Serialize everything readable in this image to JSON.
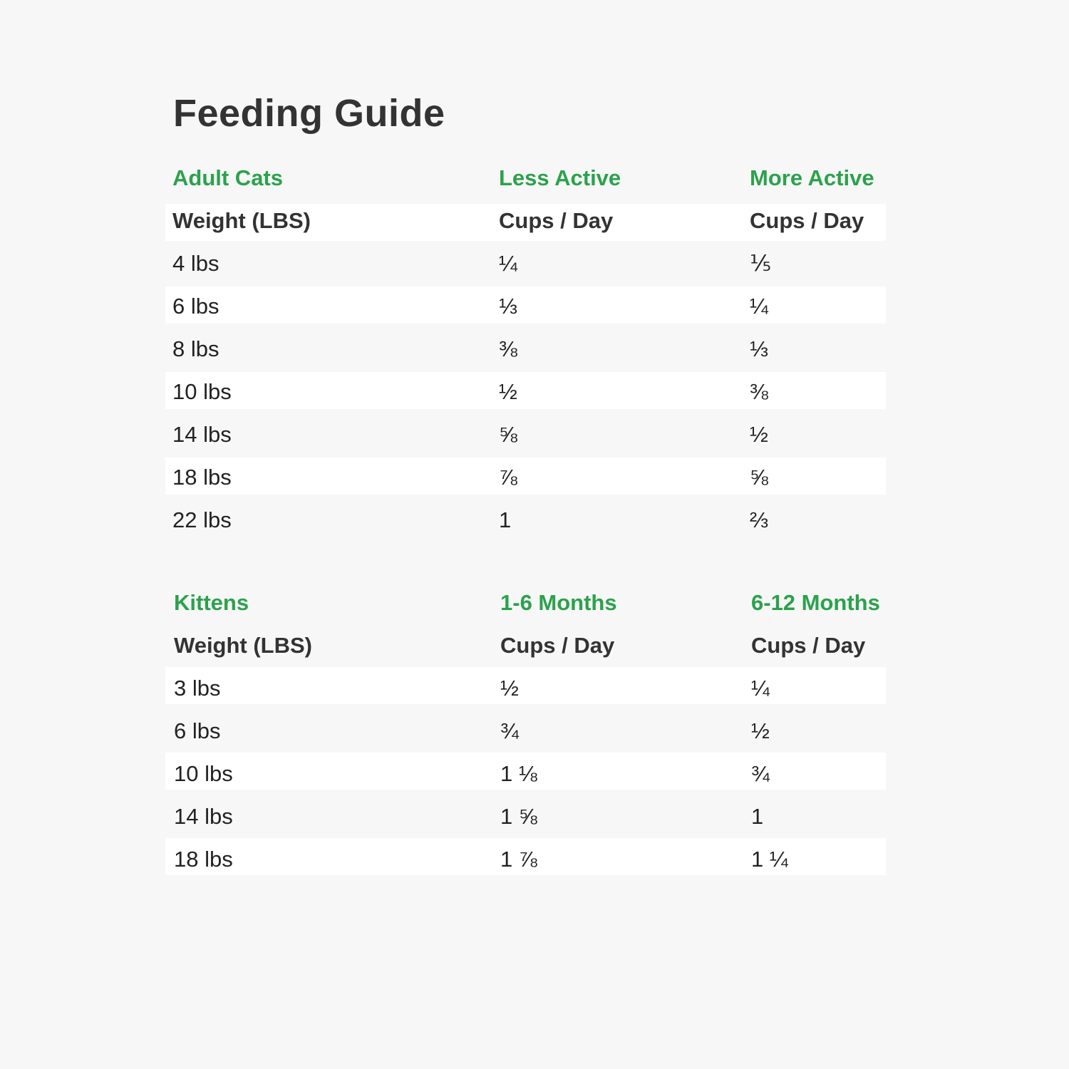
{
  "title": "Feeding Guide",
  "tables": [
    {
      "group_header": [
        "Adult Cats",
        "Less Active",
        "More Active"
      ],
      "column_header": [
        "Weight (LBS)",
        "Cups / Day",
        "Cups / Day"
      ],
      "rows": [
        [
          "4 lbs",
          "¼",
          "⅕"
        ],
        [
          "6 lbs",
          "⅓",
          "¼"
        ],
        [
          "8 lbs",
          "⅜",
          "⅓"
        ],
        [
          "10 lbs",
          "½",
          "⅜"
        ],
        [
          "14 lbs",
          "⅝",
          "½"
        ],
        [
          "18 lbs",
          "⅞",
          "⅝"
        ],
        [
          "22 lbs",
          "1",
          "⅔"
        ]
      ]
    },
    {
      "group_header": [
        "Kittens",
        "1-6 Months",
        "6-12 Months"
      ],
      "column_header": [
        "Weight (LBS)",
        "Cups / Day",
        "Cups / Day"
      ],
      "rows": [
        [
          "3 lbs",
          "½",
          "¼"
        ],
        [
          "6 lbs",
          "¾",
          "½"
        ],
        [
          "10 lbs",
          "1 ⅛",
          "¾"
        ],
        [
          "14 lbs",
          "1 ⅝",
          "1"
        ],
        [
          "18 lbs",
          "1 ⅞",
          "1 ¼"
        ]
      ]
    }
  ]
}
